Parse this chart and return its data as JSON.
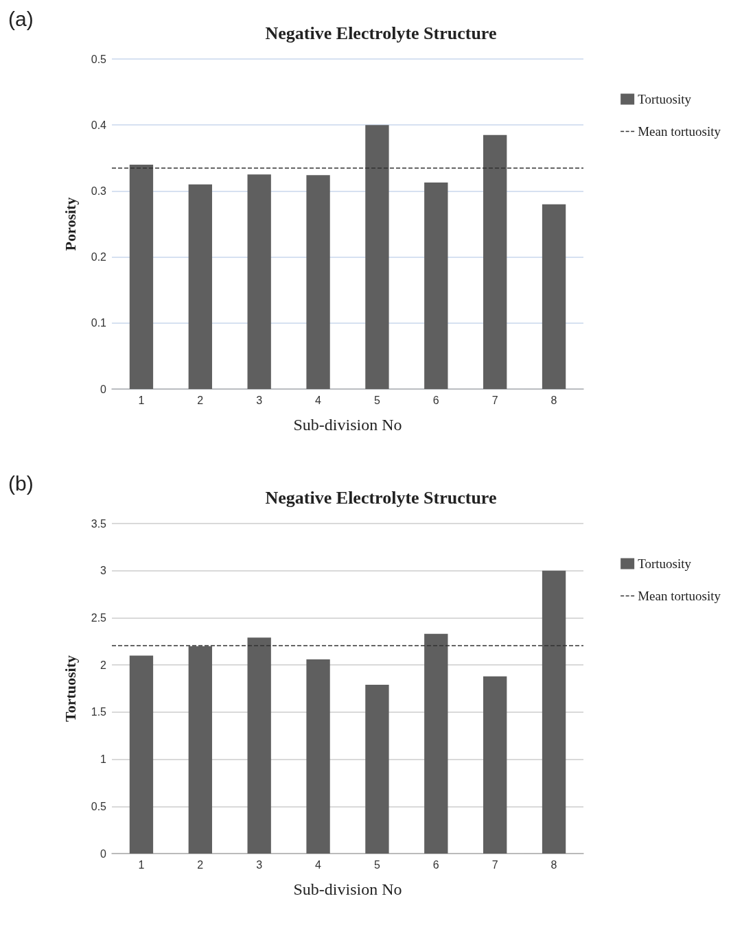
{
  "chart_data": [
    {
      "type": "bar",
      "title": "Negative Electrolyte Structure",
      "xlabel": "Sub-division No",
      "ylabel": "Porosity",
      "annotations": [
        "(a)"
      ],
      "categories": [
        "1",
        "2",
        "3",
        "4",
        "5",
        "6",
        "7",
        "8"
      ],
      "series": [
        {
          "name": "Tortuosity",
          "color": "#5f5f5f",
          "values": [
            0.34,
            0.31,
            0.325,
            0.324,
            0.4,
            0.313,
            0.385,
            0.28
          ]
        }
      ],
      "ylim": [
        0,
        0.5
      ],
      "yticks": [
        0,
        0.1,
        0.2,
        0.3,
        0.4,
        0.5
      ],
      "grid": "y",
      "legend": "right",
      "ref_lines": [
        {
          "axis": "y",
          "value": 0.335,
          "label": "Mean tortuosity",
          "color": "#333333",
          "line_style": "dashed"
        }
      ]
    },
    {
      "type": "bar",
      "title": "Negative Electrolyte Structure",
      "xlabel": "Sub-division No",
      "ylabel": "Tortuosity",
      "annotations": [
        "(b)"
      ],
      "categories": [
        "1",
        "2",
        "3",
        "4",
        "5",
        "6",
        "7",
        "8"
      ],
      "series": [
        {
          "name": "Tortuosity",
          "color": "#5f5f5f",
          "values": [
            2.1,
            2.2,
            2.29,
            2.06,
            1.79,
            2.33,
            1.88,
            3.0
          ]
        }
      ],
      "ylim": [
        0,
        3.5
      ],
      "yticks": [
        0,
        0.5,
        1,
        1.5,
        2,
        2.5,
        3,
        3.5
      ],
      "grid": "y",
      "legend": "right",
      "ref_lines": [
        {
          "axis": "y",
          "value": 2.21,
          "label": "Mean tortuosity",
          "color": "#333333",
          "line_style": "dashed"
        }
      ]
    }
  ]
}
